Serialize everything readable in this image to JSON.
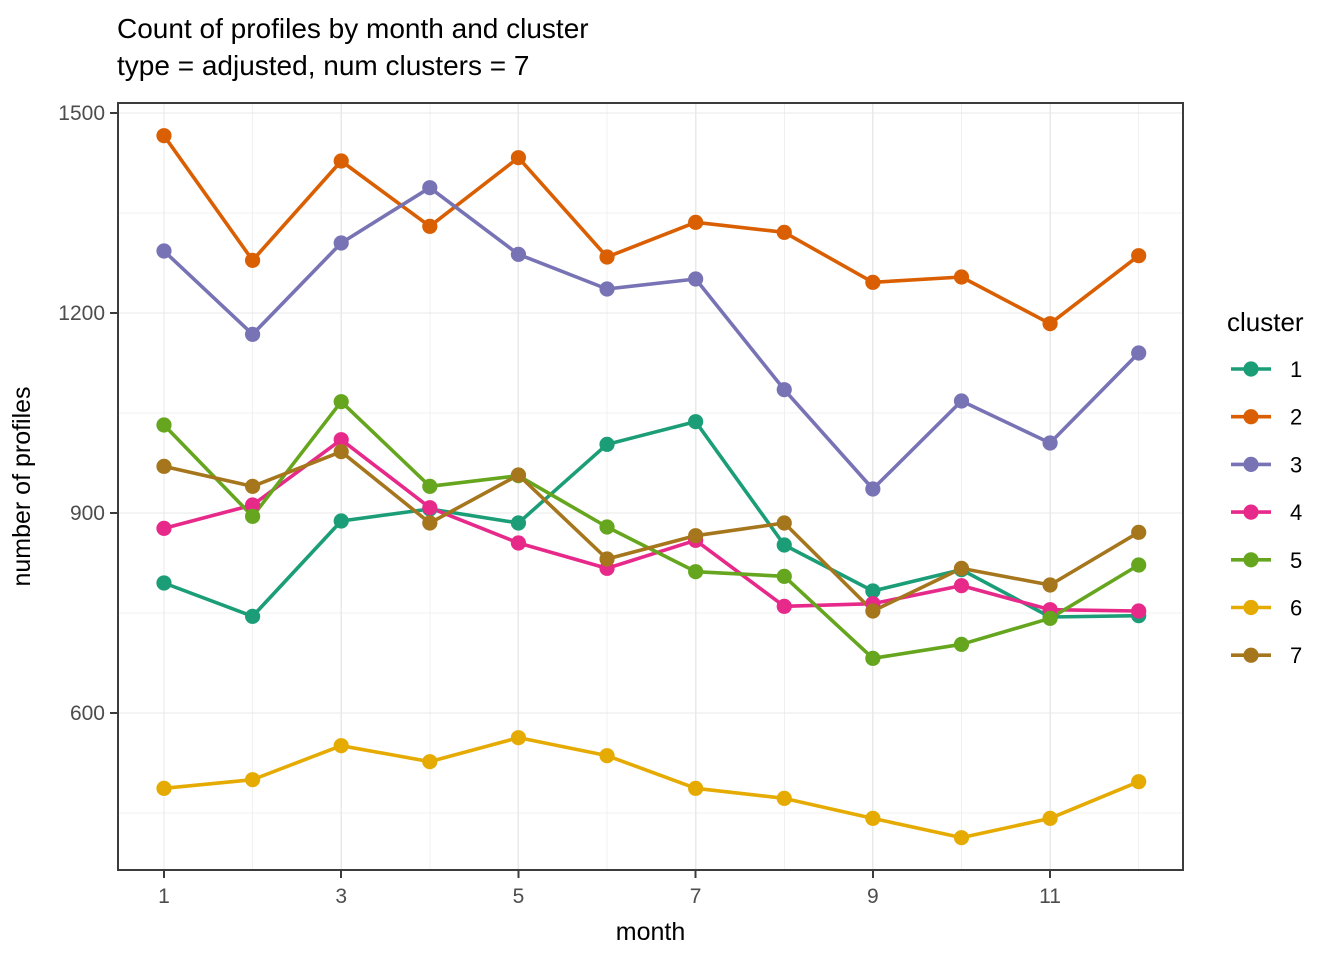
{
  "title": "Count of profiles by month and cluster",
  "subtitle": "type = adjusted, num clusters = 7",
  "x_axis": {
    "label": "month"
  },
  "y_axis": {
    "label": "number of profiles"
  },
  "legend": {
    "title": "cluster",
    "position": "right"
  },
  "chart_data": {
    "type": "line",
    "title": "Count of profiles by month and cluster",
    "subtitle": "type = adjusted, num clusters = 7",
    "xlabel": "month",
    "ylabel": "number of profiles",
    "x": [
      1,
      2,
      3,
      4,
      5,
      6,
      7,
      8,
      9,
      10,
      11,
      12
    ],
    "series": [
      {
        "name": "1",
        "color": "#1B9E77",
        "values": [
          795,
          745,
          888,
          906,
          885,
          1003,
          1037,
          852,
          783,
          815,
          744,
          746
        ]
      },
      {
        "name": "2",
        "color": "#D95F02",
        "values": [
          1466,
          1279,
          1428,
          1330,
          1433,
          1284,
          1336,
          1321,
          1246,
          1254,
          1184,
          1286
        ]
      },
      {
        "name": "3",
        "color": "#7873B5",
        "values": [
          1293,
          1168,
          1305,
          1388,
          1288,
          1236,
          1251,
          1085,
          936,
          1068,
          1005,
          1140
        ]
      },
      {
        "name": "4",
        "color": "#E7298A",
        "values": [
          877,
          912,
          1010,
          908,
          855,
          817,
          859,
          760,
          764,
          791,
          755,
          753
        ]
      },
      {
        "name": "5",
        "color": "#66A61E",
        "values": [
          1032,
          895,
          1067,
          940,
          956,
          879,
          812,
          805,
          682,
          703,
          742,
          822
        ]
      },
      {
        "name": "6",
        "color": "#E6AB02",
        "values": [
          487,
          500,
          551,
          527,
          563,
          536,
          487,
          472,
          442,
          413,
          442,
          497
        ]
      },
      {
        "name": "7",
        "color": "#A6761D",
        "values": [
          970,
          940,
          992,
          885,
          957,
          831,
          866,
          885,
          753,
          817,
          792,
          871
        ]
      }
    ],
    "x_ticks": {
      "values": [
        1,
        3,
        5,
        7,
        9,
        11
      ],
      "labels": [
        "1",
        "3",
        "5",
        "7",
        "9",
        "11"
      ]
    },
    "x_minor_ticks": [
      2,
      4,
      6,
      8,
      10,
      12
    ],
    "y_ticks": {
      "values": [
        600,
        900,
        1200,
        1500
      ],
      "labels": [
        "600",
        "900",
        "1200",
        "1500"
      ]
    },
    "y_minor_ticks": [
      450,
      750,
      1050,
      1350
    ],
    "xlim": [
      0.481,
      12.5
    ],
    "ylim": [
      364.5,
      1515
    ],
    "grid": true,
    "legend_position": "right",
    "legend_title": "cluster",
    "colors": {
      "cluster_1": "#1B9E77",
      "cluster_2": "#D95F02",
      "cluster_3": "#7873B5",
      "cluster_4": "#E7298A",
      "cluster_5": "#66A61E",
      "cluster_6": "#E6AB02",
      "cluster_7": "#A6761D",
      "grid_major": "#E9E9E9",
      "grid_minor": "#F0F0F0",
      "panel_border": "#3C3C3C",
      "tick_text": "#4D4D4D",
      "axis_title_text": "#000000"
    }
  }
}
